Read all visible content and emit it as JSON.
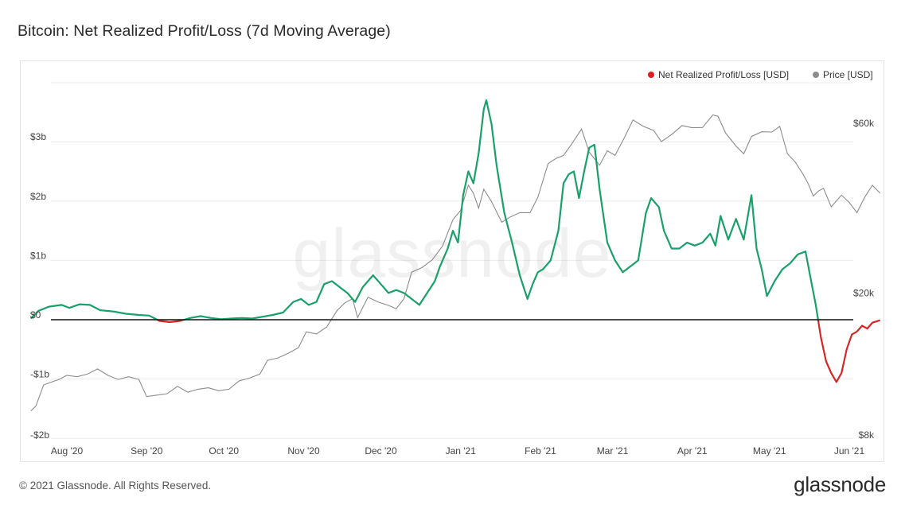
{
  "title": "Bitcoin: Net Realized Profit/Loss (7d Moving Average)",
  "footer": {
    "copyright": "© 2021 Glassnode. All Rights Reserved.",
    "logo": "glassnode"
  },
  "watermark": "glassnode",
  "colors": {
    "positive": "#1aa06a",
    "negative": "#d62626",
    "price": "#8c8c8c",
    "zero_line": "#111111",
    "grid": "#ececec",
    "legend_npl": "#e01e1e",
    "legend_price": "#8c8c8c"
  },
  "chart_data": {
    "type": "line",
    "legend_position": "top-right",
    "grid": true,
    "x_ticks": [
      "Aug '20",
      "Sep '20",
      "Oct '20",
      "Nov '20",
      "Dec '20",
      "Jan '21",
      "Feb '21",
      "Mar '21",
      "Apr '21",
      "May '21",
      "Jun '21"
    ],
    "x_tick_dates": [
      "2020-08-01",
      "2020-09-01",
      "2020-10-01",
      "2020-11-01",
      "2020-12-01",
      "2021-01-01",
      "2021-02-01",
      "2021-03-01",
      "2021-04-01",
      "2021-05-01",
      "2021-06-01"
    ],
    "y_left": {
      "ticks": [
        "$3b",
        "$2b",
        "$1b",
        "$0",
        "-$1b",
        "-$2b"
      ],
      "tick_values": [
        3,
        2,
        1,
        0,
        -1,
        -2
      ],
      "unit": "billion USD",
      "range": [
        -2,
        4
      ]
    },
    "y_right": {
      "scale": "log",
      "ticks": [
        "$60k",
        "$20k",
        "$8k"
      ],
      "tick_values": [
        60000,
        20000,
        8000
      ],
      "range": [
        8000,
        75000
      ]
    },
    "series": [
      {
        "name": "Net Realized Profit/Loss [USD]",
        "axis": "left",
        "points": [
          [
            "2020-07-22",
            0.02
          ],
          [
            "2020-07-25",
            0.15
          ],
          [
            "2020-07-29",
            0.22
          ],
          [
            "2020-08-03",
            0.25
          ],
          [
            "2020-08-06",
            0.2
          ],
          [
            "2020-08-10",
            0.26
          ],
          [
            "2020-08-14",
            0.25
          ],
          [
            "2020-08-18",
            0.16
          ],
          [
            "2020-08-23",
            0.14
          ],
          [
            "2020-08-28",
            0.1
          ],
          [
            "2020-09-02",
            0.08
          ],
          [
            "2020-09-06",
            0.07
          ],
          [
            "2020-09-10",
            -0.02
          ],
          [
            "2020-09-14",
            -0.04
          ],
          [
            "2020-09-18",
            -0.02
          ],
          [
            "2020-09-22",
            0.03
          ],
          [
            "2020-09-26",
            0.06
          ],
          [
            "2020-09-30",
            0.03
          ],
          [
            "2020-10-04",
            0.01
          ],
          [
            "2020-10-08",
            0.02
          ],
          [
            "2020-10-12",
            0.03
          ],
          [
            "2020-10-16",
            0.02
          ],
          [
            "2020-10-20",
            0.05
          ],
          [
            "2020-10-24",
            0.08
          ],
          [
            "2020-10-28",
            0.12
          ],
          [
            "2020-11-01",
            0.3
          ],
          [
            "2020-11-04",
            0.35
          ],
          [
            "2020-11-07",
            0.25
          ],
          [
            "2020-11-10",
            0.3
          ],
          [
            "2020-11-13",
            0.6
          ],
          [
            "2020-11-16",
            0.65
          ],
          [
            "2020-11-19",
            0.55
          ],
          [
            "2020-11-22",
            0.45
          ],
          [
            "2020-11-25",
            0.3
          ],
          [
            "2020-11-28",
            0.55
          ],
          [
            "2020-12-02",
            0.75
          ],
          [
            "2020-12-05",
            0.6
          ],
          [
            "2020-12-08",
            0.45
          ],
          [
            "2020-12-11",
            0.5
          ],
          [
            "2020-12-14",
            0.45
          ],
          [
            "2020-12-17",
            0.35
          ],
          [
            "2020-12-20",
            0.25
          ],
          [
            "2020-12-23",
            0.45
          ],
          [
            "2020-12-26",
            0.65
          ],
          [
            "2020-12-28",
            0.9
          ],
          [
            "2020-12-31",
            1.2
          ],
          [
            "2021-01-02",
            1.5
          ],
          [
            "2021-01-04",
            1.3
          ],
          [
            "2021-01-06",
            2.1
          ],
          [
            "2021-01-08",
            2.5
          ],
          [
            "2021-01-10",
            2.3
          ],
          [
            "2021-01-12",
            2.8
          ],
          [
            "2021-01-14",
            3.55
          ],
          [
            "2021-01-15",
            3.7
          ],
          [
            "2021-01-17",
            3.3
          ],
          [
            "2021-01-19",
            2.6
          ],
          [
            "2021-01-22",
            1.8
          ],
          [
            "2021-01-25",
            1.3
          ],
          [
            "2021-01-28",
            0.75
          ],
          [
            "2021-01-31",
            0.35
          ],
          [
            "2021-02-02",
            0.6
          ],
          [
            "2021-02-04",
            0.8
          ],
          [
            "2021-02-06",
            0.85
          ],
          [
            "2021-02-09",
            1.0
          ],
          [
            "2021-02-12",
            1.5
          ],
          [
            "2021-02-14",
            2.3
          ],
          [
            "2021-02-16",
            2.45
          ],
          [
            "2021-02-18",
            2.5
          ],
          [
            "2021-02-20",
            2.05
          ],
          [
            "2021-02-22",
            2.5
          ],
          [
            "2021-02-24",
            2.9
          ],
          [
            "2021-02-26",
            2.95
          ],
          [
            "2021-02-28",
            2.2
          ],
          [
            "2021-03-03",
            1.3
          ],
          [
            "2021-03-06",
            1.0
          ],
          [
            "2021-03-09",
            0.8
          ],
          [
            "2021-03-12",
            0.9
          ],
          [
            "2021-03-15",
            1.0
          ],
          [
            "2021-03-18",
            1.8
          ],
          [
            "2021-03-20",
            2.05
          ],
          [
            "2021-03-23",
            1.9
          ],
          [
            "2021-03-25",
            1.5
          ],
          [
            "2021-03-28",
            1.2
          ],
          [
            "2021-03-31",
            1.2
          ],
          [
            "2021-04-03",
            1.3
          ],
          [
            "2021-04-06",
            1.25
          ],
          [
            "2021-04-09",
            1.3
          ],
          [
            "2021-04-12",
            1.45
          ],
          [
            "2021-04-14",
            1.25
          ],
          [
            "2021-04-16",
            1.75
          ],
          [
            "2021-04-19",
            1.35
          ],
          [
            "2021-04-22",
            1.7
          ],
          [
            "2021-04-25",
            1.35
          ],
          [
            "2021-04-28",
            2.1
          ],
          [
            "2021-04-30",
            1.2
          ],
          [
            "2021-05-02",
            0.85
          ],
          [
            "2021-05-04",
            0.4
          ],
          [
            "2021-05-07",
            0.65
          ],
          [
            "2021-05-10",
            0.85
          ],
          [
            "2021-05-13",
            0.95
          ],
          [
            "2021-05-16",
            1.1
          ],
          [
            "2021-05-19",
            1.15
          ],
          [
            "2021-05-21",
            0.7
          ],
          [
            "2021-05-23",
            0.25
          ],
          [
            "2021-05-25",
            -0.3
          ],
          [
            "2021-05-27",
            -0.7
          ],
          [
            "2021-05-29",
            -0.9
          ],
          [
            "2021-05-31",
            -1.05
          ],
          [
            "2021-06-02",
            -0.9
          ],
          [
            "2021-06-04",
            -0.5
          ],
          [
            "2021-06-06",
            -0.25
          ],
          [
            "2021-06-08",
            -0.2
          ],
          [
            "2021-06-10",
            -0.1
          ],
          [
            "2021-06-12",
            -0.15
          ],
          [
            "2021-06-14",
            -0.05
          ],
          [
            "2021-06-17",
            -0.01
          ]
        ]
      },
      {
        "name": "Price [USD]",
        "axis": "right",
        "points": [
          [
            "2020-07-22",
            9300
          ],
          [
            "2020-07-24",
            9600
          ],
          [
            "2020-07-27",
            11000
          ],
          [
            "2020-07-30",
            11200
          ],
          [
            "2020-08-02",
            11400
          ],
          [
            "2020-08-05",
            11700
          ],
          [
            "2020-08-09",
            11600
          ],
          [
            "2020-08-13",
            11800
          ],
          [
            "2020-08-17",
            12200
          ],
          [
            "2020-08-21",
            11700
          ],
          [
            "2020-08-25",
            11400
          ],
          [
            "2020-08-29",
            11600
          ],
          [
            "2020-09-02",
            11400
          ],
          [
            "2020-09-05",
            10200
          ],
          [
            "2020-09-09",
            10300
          ],
          [
            "2020-09-13",
            10400
          ],
          [
            "2020-09-17",
            10900
          ],
          [
            "2020-09-21",
            10500
          ],
          [
            "2020-09-25",
            10700
          ],
          [
            "2020-09-29",
            10800
          ],
          [
            "2020-10-03",
            10600
          ],
          [
            "2020-10-07",
            10700
          ],
          [
            "2020-10-11",
            11300
          ],
          [
            "2020-10-15",
            11500
          ],
          [
            "2020-10-19",
            11800
          ],
          [
            "2020-10-22",
            12900
          ],
          [
            "2020-10-26",
            13100
          ],
          [
            "2020-10-30",
            13500
          ],
          [
            "2020-11-03",
            14000
          ],
          [
            "2020-11-06",
            15500
          ],
          [
            "2020-11-10",
            15300
          ],
          [
            "2020-11-14",
            16000
          ],
          [
            "2020-11-18",
            17800
          ],
          [
            "2020-11-21",
            18700
          ],
          [
            "2020-11-24",
            19200
          ],
          [
            "2020-11-26",
            17000
          ],
          [
            "2020-11-30",
            19400
          ],
          [
            "2020-12-04",
            18800
          ],
          [
            "2020-12-08",
            18400
          ],
          [
            "2020-12-11",
            18000
          ],
          [
            "2020-12-14",
            19200
          ],
          [
            "2020-12-17",
            22800
          ],
          [
            "2020-12-21",
            23500
          ],
          [
            "2020-12-25",
            24700
          ],
          [
            "2020-12-29",
            27000
          ],
          [
            "2021-01-02",
            32000
          ],
          [
            "2021-01-05",
            34000
          ],
          [
            "2021-01-08",
            40000
          ],
          [
            "2021-01-10",
            38000
          ],
          [
            "2021-01-12",
            34500
          ],
          [
            "2021-01-14",
            39000
          ],
          [
            "2021-01-17",
            36000
          ],
          [
            "2021-01-21",
            31500
          ],
          [
            "2021-01-24",
            32500
          ],
          [
            "2021-01-28",
            33500
          ],
          [
            "2021-02-01",
            33500
          ],
          [
            "2021-02-04",
            37000
          ],
          [
            "2021-02-08",
            46000
          ],
          [
            "2021-02-11",
            47500
          ],
          [
            "2021-02-14",
            48500
          ],
          [
            "2021-02-17",
            52000
          ],
          [
            "2021-02-21",
            57500
          ],
          [
            "2021-02-24",
            49500
          ],
          [
            "2021-02-28",
            45500
          ],
          [
            "2021-03-03",
            50000
          ],
          [
            "2021-03-06",
            48500
          ],
          [
            "2021-03-10",
            55000
          ],
          [
            "2021-03-13",
            61000
          ],
          [
            "2021-03-17",
            58500
          ],
          [
            "2021-03-21",
            57000
          ],
          [
            "2021-03-24",
            53000
          ],
          [
            "2021-03-28",
            55500
          ],
          [
            "2021-04-01",
            58800
          ],
          [
            "2021-04-05",
            58000
          ],
          [
            "2021-04-09",
            58100
          ],
          [
            "2021-04-13",
            63000
          ],
          [
            "2021-04-15",
            62500
          ],
          [
            "2021-04-18",
            56000
          ],
          [
            "2021-04-22",
            51500
          ],
          [
            "2021-04-25",
            49000
          ],
          [
            "2021-04-28",
            54800
          ],
          [
            "2021-05-02",
            56500
          ],
          [
            "2021-05-06",
            56400
          ],
          [
            "2021-05-09",
            58500
          ],
          [
            "2021-05-12",
            49000
          ],
          [
            "2021-05-15",
            46500
          ],
          [
            "2021-05-18",
            43000
          ],
          [
            "2021-05-20",
            40500
          ],
          [
            "2021-05-22",
            37300
          ],
          [
            "2021-05-24",
            38500
          ],
          [
            "2021-05-26",
            39200
          ],
          [
            "2021-05-29",
            34800
          ],
          [
            "2021-06-02",
            37500
          ],
          [
            "2021-06-05",
            35800
          ],
          [
            "2021-06-08",
            33500
          ],
          [
            "2021-06-11",
            37000
          ],
          [
            "2021-06-14",
            40000
          ],
          [
            "2021-06-17",
            38000
          ]
        ]
      }
    ]
  }
}
